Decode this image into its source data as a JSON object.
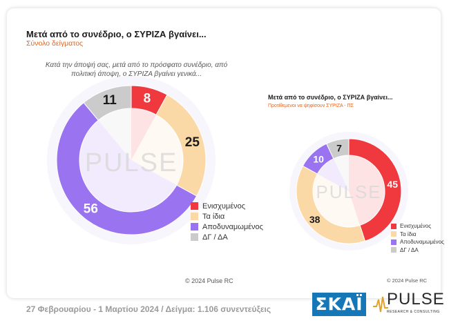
{
  "header": {
    "title": "Μετά από το συνέδριο, ο ΣΥΡΙΖΑ βγαίνει...",
    "subtitle": "Σύνολο δείγματος",
    "question": "Κατά την άποψή σας, μετά από το πρόσφατο συνέδριο, από πολιτική άποψη, ο ΣΥΡΙΖΑ βγαίνει γενικά..."
  },
  "small_header": {
    "title": "Μετά από το συνέδριο, ο ΣΥΡΙΖΑ βγαίνει...",
    "subtitle": "Προτίθεμενοι να ψηφίσουν ΣΥΡΙΖΑ - ΠΣ"
  },
  "watermark": "PULSE",
  "copyright_main": "© 2024 Pulse RC",
  "copyright_small": "© 2024 Pulse RC",
  "footer": "27 Φεβρουαρίου - 1 Μαρτίου 2024  /  Δείγμα:  1.106 συνεντεύξεις",
  "logos": {
    "skai": "ΣΚΑΪ",
    "pulse": "PULSE",
    "pulse_tagline": "RESEARCH & CONSULTING"
  },
  "colors": {
    "strengthened": "#f0383f",
    "same": "#fbd9a6",
    "weakened": "#9a73f0",
    "dk_na": "#cbcbcb",
    "accent": "#e2641e",
    "brand_blue": "#1677b6"
  },
  "chart_data": [
    {
      "type": "pie",
      "style": "donut",
      "title": "Μετά από το συνέδριο, ο ΣΥΡΙΖΑ βγαίνει...",
      "subtitle": "Σύνολο δείγματος",
      "categories": [
        "Ενισχυμένος",
        "Τα ίδια",
        "Αποδυναμωμένος",
        "ΔΓ / ΔΑ"
      ],
      "values": [
        8,
        25,
        56,
        11
      ],
      "colors": [
        "#f0383f",
        "#fbd9a6",
        "#9a73f0",
        "#cbcbcb"
      ],
      "legend": "bottom-right"
    },
    {
      "type": "pie",
      "style": "donut",
      "title": "Μετά από το συνέδριο, ο ΣΥΡΙΖΑ βγαίνει...",
      "subtitle": "Προτίθεμενοι να ψηφίσουν ΣΥΡΙΖΑ - ΠΣ",
      "categories": [
        "Ενισχυμένος",
        "Τα ίδια",
        "Αποδυναμωμένος",
        "ΔΓ / ΔΑ"
      ],
      "values": [
        45,
        38,
        10,
        7
      ],
      "colors": [
        "#f0383f",
        "#fbd9a6",
        "#9a73f0",
        "#cbcbcb"
      ],
      "legend": "bottom-right"
    }
  ]
}
